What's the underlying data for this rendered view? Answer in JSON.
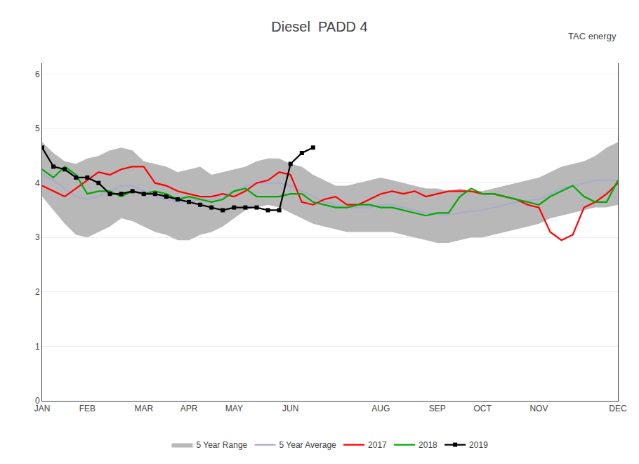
{
  "chart_data": {
    "type": "line",
    "title": "Diesel  PADD 4",
    "annotations": [
      "TAC energy"
    ],
    "categories": [
      "JAN",
      null,
      null,
      null,
      "FEB",
      null,
      null,
      null,
      null,
      "MAR",
      null,
      null,
      null,
      "APR",
      null,
      null,
      null,
      "MAY",
      null,
      null,
      null,
      null,
      "JUN",
      null,
      null,
      null,
      null,
      null,
      null,
      null,
      "AUG",
      null,
      null,
      null,
      null,
      "SEP",
      null,
      null,
      null,
      "OCT",
      null,
      null,
      null,
      null,
      "NOV",
      null,
      null,
      null,
      null,
      null,
      null,
      "DEC"
    ],
    "ylim": [
      0,
      6.2
    ],
    "yticks": [
      0,
      1,
      2,
      3,
      4,
      5,
      6
    ],
    "grid": true,
    "legend": "bottom",
    "series": [
      {
        "name": "5 Year Range",
        "type": "range",
        "color": "#B0B0B0",
        "upper": [
          4.75,
          4.55,
          4.4,
          4.35,
          4.45,
          4.5,
          4.6,
          4.65,
          4.6,
          4.4,
          4.35,
          4.3,
          4.2,
          4.25,
          4.3,
          4.15,
          4.2,
          4.25,
          4.3,
          4.4,
          4.45,
          4.45,
          4.35,
          4.3,
          4.15,
          4.05,
          3.95,
          3.95,
          4.0,
          4.05,
          4.1,
          4.05,
          4.0,
          3.95,
          3.9,
          3.9,
          3.85,
          3.9,
          3.85,
          3.85,
          3.9,
          3.95,
          4.0,
          4.05,
          4.1,
          4.2,
          4.3,
          4.35,
          4.4,
          4.5,
          4.65,
          4.75
        ],
        "lower": [
          3.75,
          3.5,
          3.25,
          3.05,
          3.0,
          3.1,
          3.2,
          3.35,
          3.3,
          3.2,
          3.1,
          3.05,
          2.95,
          2.95,
          3.05,
          3.1,
          3.2,
          3.35,
          3.5,
          3.55,
          3.6,
          3.55,
          3.45,
          3.35,
          3.25,
          3.2,
          3.15,
          3.1,
          3.1,
          3.1,
          3.1,
          3.1,
          3.05,
          3.0,
          2.95,
          2.9,
          2.9,
          2.95,
          3.0,
          3.0,
          3.05,
          3.1,
          3.15,
          3.2,
          3.25,
          3.35,
          3.4,
          3.45,
          3.5,
          3.55,
          3.55,
          3.6
        ]
      },
      {
        "name": "5 Year Average",
        "color": "#AAAACC",
        "values": [
          4.15,
          4.05,
          3.9,
          3.75,
          3.7,
          3.75,
          3.85,
          3.95,
          3.95,
          3.85,
          3.75,
          3.7,
          3.65,
          3.65,
          3.7,
          3.7,
          3.75,
          3.85,
          3.95,
          4.0,
          4.0,
          4.0,
          3.95,
          3.85,
          3.75,
          3.65,
          3.6,
          3.55,
          3.55,
          3.55,
          3.6,
          3.6,
          3.55,
          3.5,
          3.45,
          3.42,
          3.42,
          3.45,
          3.48,
          3.5,
          3.55,
          3.6,
          3.65,
          3.68,
          3.7,
          3.8,
          3.9,
          3.95,
          4.0,
          4.05,
          4.05,
          4.05
        ]
      },
      {
        "name": "2017",
        "color": "#FF0000",
        "values": [
          3.95,
          3.85,
          3.75,
          3.9,
          4.05,
          4.2,
          4.15,
          4.25,
          4.3,
          4.3,
          4.0,
          3.95,
          3.85,
          3.8,
          3.75,
          3.75,
          3.8,
          3.75,
          3.85,
          4.0,
          4.05,
          4.2,
          4.15,
          3.65,
          3.6,
          3.7,
          3.75,
          3.6,
          3.6,
          3.7,
          3.8,
          3.85,
          3.8,
          3.85,
          3.75,
          3.8,
          3.85,
          3.85,
          3.85,
          3.8,
          3.8,
          3.75,
          3.7,
          3.6,
          3.55,
          3.1,
          2.95,
          3.05,
          3.55,
          3.65,
          3.8,
          4.0
        ]
      },
      {
        "name": "2018",
        "color": "#00AA00",
        "values": [
          4.25,
          4.1,
          4.3,
          4.15,
          3.8,
          3.85,
          3.85,
          3.75,
          3.85,
          3.8,
          3.85,
          3.8,
          3.7,
          3.75,
          3.7,
          3.65,
          3.7,
          3.85,
          3.9,
          3.75,
          3.75,
          3.75,
          3.8,
          3.8,
          3.65,
          3.6,
          3.55,
          3.55,
          3.6,
          3.6,
          3.55,
          3.55,
          3.5,
          3.45,
          3.4,
          3.45,
          3.45,
          3.75,
          3.9,
          3.8,
          3.8,
          3.75,
          3.7,
          3.65,
          3.6,
          3.75,
          3.85,
          3.95,
          3.75,
          3.65,
          3.65,
          4.05
        ]
      },
      {
        "name": "2019",
        "color": "#000000",
        "marker": "square",
        "values": [
          4.65,
          4.3,
          4.25,
          4.1,
          4.1,
          4.0,
          3.8,
          3.8,
          3.85,
          3.8,
          3.8,
          3.75,
          3.7,
          3.65,
          3.6,
          3.55,
          3.5,
          3.55,
          3.55,
          3.55,
          3.5,
          3.5,
          4.35,
          4.55,
          4.65,
          null,
          null,
          null,
          null,
          null,
          null,
          null,
          null,
          null,
          null,
          null,
          null,
          null,
          null,
          null,
          null,
          null,
          null,
          null,
          null,
          null,
          null,
          null,
          null,
          null,
          null,
          null
        ]
      }
    ]
  }
}
